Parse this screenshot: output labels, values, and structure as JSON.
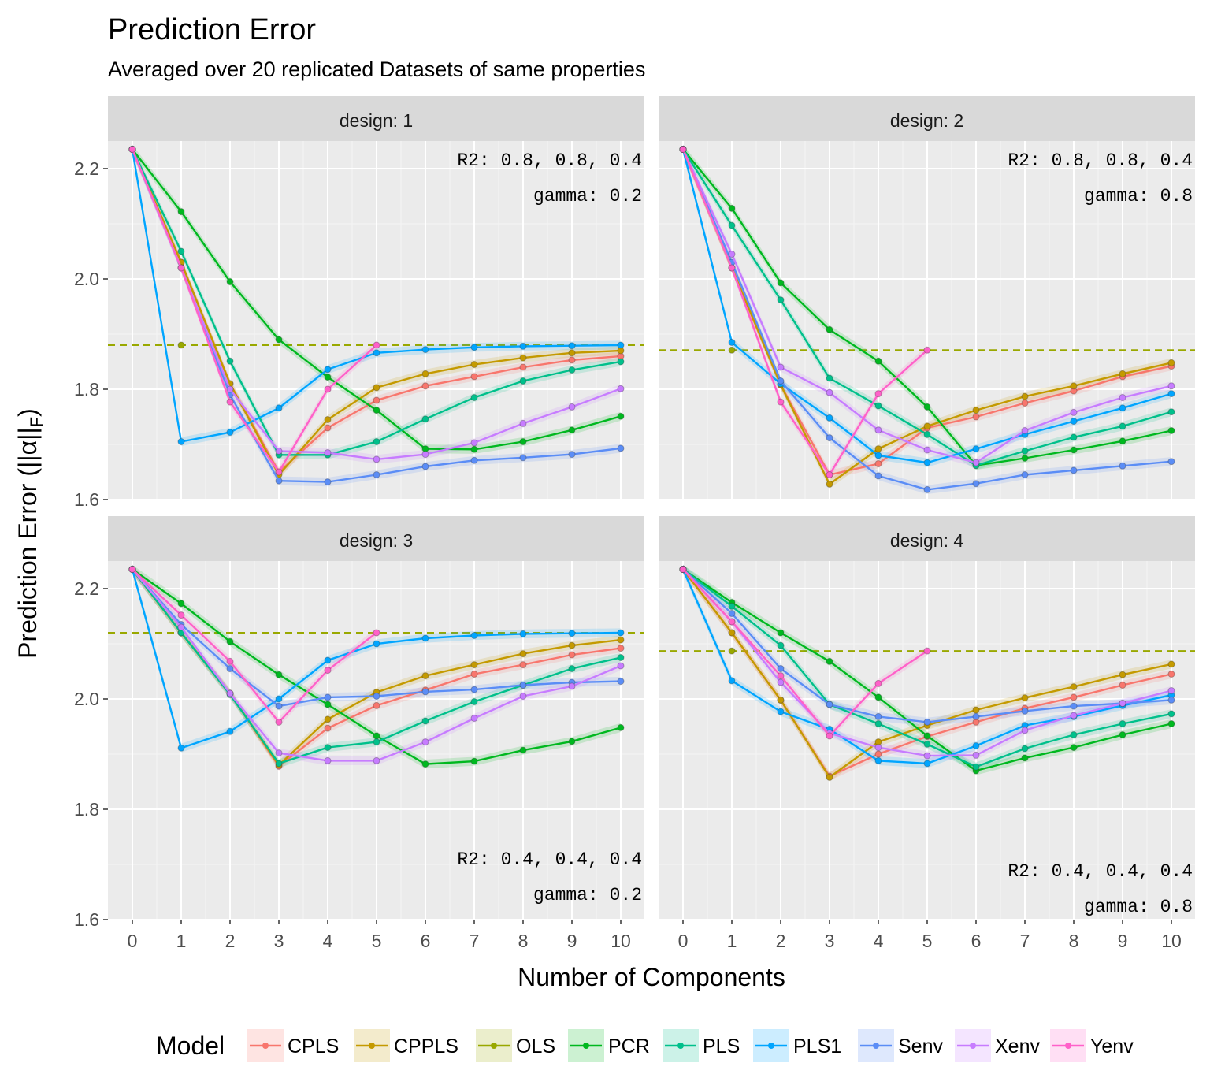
{
  "chart_data": {
    "type": "line",
    "title": "Prediction Error",
    "subtitle": "Averaged over 20 replicated Datasets of same properties",
    "xlabel": "Number of Components",
    "ylabel_prefix": "Prediction Error (||α||",
    "ylabel_sub": "F",
    "ylabel_suffix": ")",
    "xlim": [
      0,
      10
    ],
    "ylim": [
      1.6,
      2.25
    ],
    "x_ticks": [
      0,
      1,
      2,
      3,
      4,
      5,
      6,
      7,
      8,
      9,
      10
    ],
    "y_ticks": [
      1.6,
      1.8,
      2.0,
      2.2
    ],
    "y_tick_labels": [
      "1.6",
      "1.8",
      "2.0",
      "2.2"
    ],
    "grid": true,
    "legend_title": "Model",
    "legend_position": "bottom",
    "colors": {
      "CPLS": "#F8766D",
      "CPPLS": "#C49A00",
      "OLS": "#99A800",
      "PCR": "#00B81F",
      "PLS": "#00C08B",
      "PLS1": "#00A5FF",
      "Senv": "#5B8DF6",
      "Xenv": "#C77CFF",
      "Yenv": "#FF61C9"
    },
    "series_order": [
      "CPLS",
      "CPPLS",
      "OLS",
      "PCR",
      "PLS",
      "PLS1",
      "Senv",
      "Xenv",
      "Yenv"
    ],
    "panels": [
      {
        "strip": "design: 1",
        "annotations": [
          "R2: 0.8, 0.8, 0.4",
          "gamma: 0.2"
        ],
        "annotation_position": "top-right",
        "ols_line": 1.88,
        "series": [
          {
            "name": "CPLS",
            "x": [
              0,
              1,
              2,
              3,
              4,
              5,
              6,
              7,
              8,
              9,
              10
            ],
            "values": [
              2.235,
              2.03,
              1.81,
              1.65,
              1.73,
              1.78,
              1.806,
              1.823,
              1.84,
              1.853,
              1.86
            ]
          },
          {
            "name": "CPPLS",
            "x": [
              0,
              1,
              2,
              3,
              4,
              5,
              6,
              7,
              8,
              9,
              10
            ],
            "values": [
              2.235,
              2.03,
              1.81,
              1.645,
              1.745,
              1.803,
              1.828,
              1.845,
              1.857,
              1.866,
              1.87
            ]
          },
          {
            "name": "OLS",
            "x": [
              1
            ],
            "values": [
              1.88
            ]
          },
          {
            "name": "PCR",
            "x": [
              0,
              1,
              2,
              3,
              4,
              5,
              6,
              7,
              8,
              9,
              10
            ],
            "values": [
              2.235,
              2.122,
              1.995,
              1.89,
              1.822,
              1.762,
              1.692,
              1.691,
              1.705,
              1.726,
              1.751
            ]
          },
          {
            "name": "PLS",
            "x": [
              0,
              1,
              2,
              3,
              4,
              5,
              6,
              7,
              8,
              9,
              10
            ],
            "values": [
              2.235,
              2.05,
              1.851,
              1.681,
              1.681,
              1.705,
              1.746,
              1.785,
              1.815,
              1.835,
              1.85
            ]
          },
          {
            "name": "PLS1",
            "x": [
              0,
              1,
              2,
              3,
              4,
              5,
              6,
              7,
              8,
              9,
              10
            ],
            "values": [
              2.235,
              1.705,
              1.722,
              1.766,
              1.836,
              1.866,
              1.872,
              1.876,
              1.878,
              1.879,
              1.88
            ]
          },
          {
            "name": "Senv",
            "x": [
              0,
              1,
              2,
              3,
              4,
              5,
              6,
              7,
              8,
              9,
              10
            ],
            "values": [
              2.235,
              2.02,
              1.79,
              1.634,
              1.632,
              1.645,
              1.66,
              1.671,
              1.676,
              1.682,
              1.693
            ]
          },
          {
            "name": "Xenv",
            "x": [
              0,
              1,
              2,
              3,
              4,
              5,
              6,
              7,
              8,
              9,
              10
            ],
            "values": [
              2.235,
              2.02,
              1.8,
              1.688,
              1.685,
              1.673,
              1.682,
              1.703,
              1.738,
              1.768,
              1.801
            ]
          },
          {
            "name": "Yenv",
            "x": [
              0,
              1,
              2,
              3,
              4,
              5
            ],
            "values": [
              2.235,
              2.02,
              1.777,
              1.65,
              1.8,
              1.88
            ]
          }
        ]
      },
      {
        "strip": "design: 2",
        "annotations": [
          "R2: 0.8, 0.8, 0.4",
          "gamma: 0.8"
        ],
        "annotation_position": "top-right",
        "ols_line": 1.871,
        "series": [
          {
            "name": "CPLS",
            "x": [
              0,
              1,
              2,
              3,
              4,
              5,
              6,
              7,
              8,
              9,
              10
            ],
            "values": [
              2.235,
              2.02,
              1.808,
              1.645,
              1.665,
              1.73,
              1.75,
              1.775,
              1.797,
              1.823,
              1.842
            ]
          },
          {
            "name": "CPPLS",
            "x": [
              0,
              1,
              2,
              3,
              4,
              5,
              6,
              7,
              8,
              9,
              10
            ],
            "values": [
              2.235,
              2.02,
              1.808,
              1.628,
              1.692,
              1.733,
              1.762,
              1.787,
              1.806,
              1.828,
              1.848
            ]
          },
          {
            "name": "OLS",
            "x": [
              1
            ],
            "values": [
              1.871
            ]
          },
          {
            "name": "PCR",
            "x": [
              0,
              1,
              2,
              3,
              4,
              5,
              6,
              7,
              8,
              9,
              10
            ],
            "values": [
              2.235,
              2.128,
              1.993,
              1.908,
              1.851,
              1.768,
              1.662,
              1.675,
              1.69,
              1.706,
              1.725
            ]
          },
          {
            "name": "PLS",
            "x": [
              0,
              1,
              2,
              3,
              4,
              5,
              6,
              7,
              8,
              9,
              10
            ],
            "values": [
              2.235,
              2.097,
              1.962,
              1.82,
              1.77,
              1.718,
              1.662,
              1.688,
              1.713,
              1.733,
              1.759
            ]
          },
          {
            "name": "PLS1",
            "x": [
              0,
              1,
              2,
              3,
              4,
              5,
              6,
              7,
              8,
              9,
              10
            ],
            "values": [
              2.235,
              1.885,
              1.81,
              1.748,
              1.68,
              1.667,
              1.692,
              1.718,
              1.742,
              1.766,
              1.792
            ]
          },
          {
            "name": "Senv",
            "x": [
              0,
              1,
              2,
              3,
              4,
              5,
              6,
              7,
              8,
              9,
              10
            ],
            "values": [
              2.235,
              2.03,
              1.815,
              1.712,
              1.643,
              1.618,
              1.629,
              1.645,
              1.653,
              1.661,
              1.669
            ]
          },
          {
            "name": "Xenv",
            "x": [
              0,
              1,
              2,
              3,
              4,
              5,
              6,
              7,
              8,
              9,
              10
            ],
            "values": [
              2.235,
              2.045,
              1.84,
              1.794,
              1.726,
              1.69,
              1.667,
              1.725,
              1.758,
              1.785,
              1.806
            ]
          },
          {
            "name": "Yenv",
            "x": [
              0,
              1,
              2,
              3,
              4,
              5
            ],
            "values": [
              2.235,
              2.02,
              1.777,
              1.645,
              1.792,
              1.871
            ]
          }
        ]
      },
      {
        "strip": "design: 3",
        "annotations": [
          "R2: 0.4, 0.4, 0.4",
          "gamma: 0.2"
        ],
        "annotation_position": "bottom-right",
        "ols_line": 2.12,
        "series": [
          {
            "name": "CPLS",
            "x": [
              0,
              1,
              2,
              3,
              4,
              5,
              6,
              7,
              8,
              9,
              10
            ],
            "values": [
              2.235,
              2.12,
              2.01,
              1.878,
              1.947,
              1.988,
              2.016,
              2.045,
              2.062,
              2.08,
              2.092
            ]
          },
          {
            "name": "CPPLS",
            "x": [
              0,
              1,
              2,
              3,
              4,
              5,
              6,
              7,
              8,
              9,
              10
            ],
            "values": [
              2.235,
              2.12,
              2.01,
              1.88,
              1.963,
              2.012,
              2.042,
              2.062,
              2.082,
              2.097,
              2.107
            ]
          },
          {
            "name": "OLS",
            "x": [
              1
            ],
            "values": [
              2.12
            ]
          },
          {
            "name": "PCR",
            "x": [
              0,
              1,
              2,
              3,
              4,
              5,
              6,
              7,
              8,
              9,
              10
            ],
            "values": [
              2.235,
              2.173,
              2.104,
              2.044,
              1.99,
              1.933,
              1.882,
              1.887,
              1.907,
              1.923,
              1.948
            ]
          },
          {
            "name": "PLS",
            "x": [
              0,
              1,
              2,
              3,
              4,
              5,
              6,
              7,
              8,
              9,
              10
            ],
            "values": [
              2.235,
              2.12,
              2.008,
              1.883,
              1.912,
              1.922,
              1.96,
              1.995,
              2.025,
              2.055,
              2.075
            ]
          },
          {
            "name": "PLS1",
            "x": [
              0,
              1,
              2,
              3,
              4,
              5,
              6,
              7,
              8,
              9,
              10
            ],
            "values": [
              2.235,
              1.911,
              1.941,
              2.0,
              2.07,
              2.1,
              2.11,
              2.115,
              2.118,
              2.119,
              2.12
            ]
          },
          {
            "name": "Senv",
            "x": [
              0,
              1,
              2,
              3,
              4,
              5,
              6,
              7,
              8,
              9,
              10
            ],
            "values": [
              2.235,
              2.135,
              2.055,
              1.987,
              2.003,
              2.005,
              2.013,
              2.017,
              2.025,
              2.03,
              2.032
            ]
          },
          {
            "name": "Xenv",
            "x": [
              0,
              1,
              2,
              3,
              4,
              5,
              6,
              7,
              8,
              9,
              10
            ],
            "values": [
              2.235,
              2.13,
              2.01,
              1.902,
              1.888,
              1.888,
              1.922,
              1.965,
              2.005,
              2.023,
              2.06
            ]
          },
          {
            "name": "Yenv",
            "x": [
              0,
              1,
              2,
              3,
              4,
              5
            ],
            "values": [
              2.235,
              2.152,
              2.068,
              1.958,
              2.052,
              2.12
            ]
          }
        ]
      },
      {
        "strip": "design: 4",
        "annotations": [
          "R2: 0.4, 0.4, 0.4",
          "gamma: 0.8"
        ],
        "annotation_position": "bottom-right",
        "ols_line": 2.087,
        "series": [
          {
            "name": "CPLS",
            "x": [
              0,
              1,
              2,
              3,
              4,
              5,
              6,
              7,
              8,
              9,
              10
            ],
            "values": [
              2.235,
              2.12,
              1.998,
              1.86,
              1.9,
              1.932,
              1.958,
              1.983,
              2.003,
              2.025,
              2.045
            ]
          },
          {
            "name": "CPPLS",
            "x": [
              0,
              1,
              2,
              3,
              4,
              5,
              6,
              7,
              8,
              9,
              10
            ],
            "values": [
              2.235,
              2.12,
              1.998,
              1.858,
              1.922,
              1.952,
              1.98,
              2.002,
              2.022,
              2.044,
              2.063
            ]
          },
          {
            "name": "OLS",
            "x": [
              1
            ],
            "values": [
              2.087
            ]
          },
          {
            "name": "PCR",
            "x": [
              0,
              1,
              2,
              3,
              4,
              5,
              6,
              7,
              8,
              9,
              10
            ],
            "values": [
              2.235,
              2.175,
              2.12,
              2.068,
              2.003,
              1.933,
              1.87,
              1.893,
              1.912,
              1.935,
              1.955
            ]
          },
          {
            "name": "PLS",
            "x": [
              0,
              1,
              2,
              3,
              4,
              5,
              6,
              7,
              8,
              9,
              10
            ],
            "values": [
              2.235,
              2.168,
              2.097,
              1.99,
              1.955,
              1.918,
              1.877,
              1.91,
              1.935,
              1.955,
              1.973
            ]
          },
          {
            "name": "PLS1",
            "x": [
              0,
              1,
              2,
              3,
              4,
              5,
              6,
              7,
              8,
              9,
              10
            ],
            "values": [
              2.235,
              2.033,
              1.977,
              1.945,
              1.888,
              1.883,
              1.915,
              1.952,
              1.968,
              1.988,
              2.007
            ]
          },
          {
            "name": "Senv",
            "x": [
              0,
              1,
              2,
              3,
              4,
              5,
              6,
              7,
              8,
              9,
              10
            ],
            "values": [
              2.235,
              2.155,
              2.055,
              1.99,
              1.968,
              1.958,
              1.968,
              1.978,
              1.987,
              1.992,
              1.998
            ]
          },
          {
            "name": "Xenv",
            "x": [
              0,
              1,
              2,
              3,
              4,
              5,
              6,
              7,
              8,
              9,
              10
            ],
            "values": [
              2.235,
              2.14,
              2.03,
              1.938,
              1.912,
              1.897,
              1.898,
              1.943,
              1.97,
              1.992,
              2.015
            ]
          },
          {
            "name": "Yenv",
            "x": [
              0,
              1,
              2,
              3,
              4,
              5
            ],
            "values": [
              2.235,
              2.14,
              2.042,
              1.933,
              2.028,
              2.087
            ]
          }
        ]
      }
    ]
  }
}
